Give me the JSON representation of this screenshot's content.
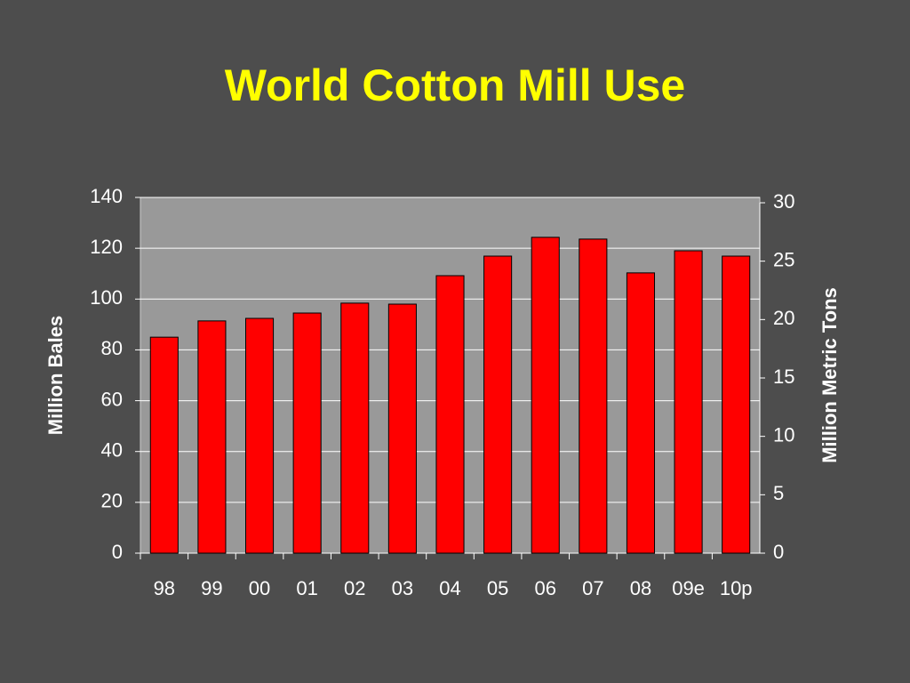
{
  "chart_data": {
    "type": "bar",
    "title": "World Cotton Mill Use",
    "y_label": "Million Bales",
    "y2_label": "Million Metric Tons",
    "categories": [
      "98",
      "99",
      "00",
      "01",
      "02",
      "03",
      "04",
      "05",
      "06",
      "07",
      "08",
      "09e",
      "10p"
    ],
    "values": [
      85,
      91.4,
      92.4,
      94.5,
      98.4,
      98,
      109.2,
      116.9,
      124.3,
      123.6,
      110.3,
      119,
      116.9
    ],
    "color": "#ff0000",
    "ylim": [
      0,
      140
    ],
    "yticks": [
      0,
      20,
      40,
      60,
      80,
      100,
      120,
      140
    ],
    "y2lim": [
      0,
      30
    ],
    "y2ticks": [
      0,
      5,
      10,
      15,
      20,
      25,
      30
    ],
    "grid": true
  }
}
